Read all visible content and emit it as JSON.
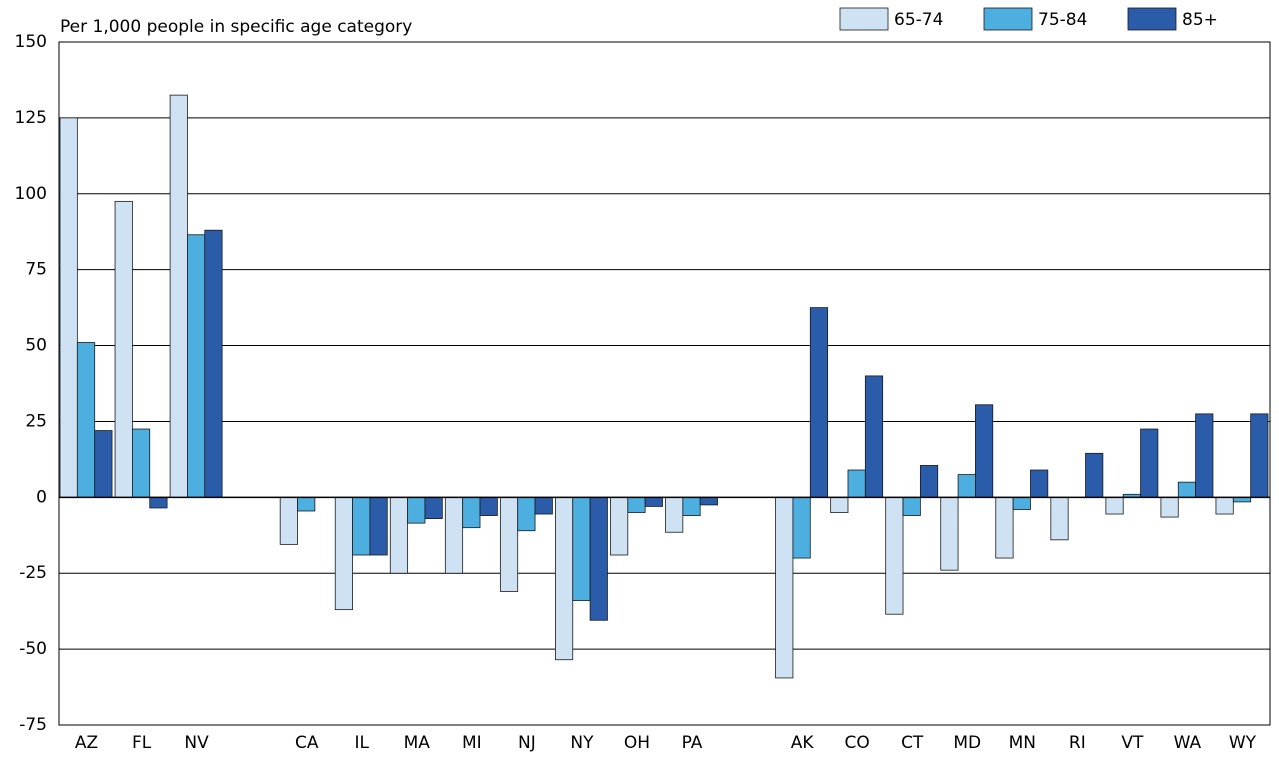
{
  "chart_data": {
    "type": "bar",
    "subtitle": "Per 1,000 people in specific age category",
    "categories": [
      "AZ",
      "FL",
      "NV",
      null,
      "CA",
      "IL",
      "MA",
      "MI",
      "NJ",
      "NY",
      "OH",
      "PA",
      null,
      "AK",
      "CO",
      "CT",
      "MD",
      "MN",
      "RI",
      "VT",
      "WA",
      "WY"
    ],
    "series": [
      {
        "name": "65-74",
        "color": "#cfe2f3",
        "values": [
          125,
          97.5,
          132.5,
          null,
          -15.5,
          -37,
          -25,
          -25,
          -31,
          -53.5,
          -19,
          -11.5,
          null,
          -59.5,
          -5,
          -38.5,
          -24,
          -20,
          -14,
          -5.5,
          -6.5,
          -5.5
        ]
      },
      {
        "name": "75-84",
        "color": "#4daee0",
        "values": [
          51,
          22.5,
          86.5,
          null,
          -4.5,
          -19,
          -8.5,
          -10,
          -11,
          -34,
          -5,
          -6,
          null,
          -20,
          9,
          -6,
          7.5,
          -4,
          0,
          1,
          5,
          -1.5
        ]
      },
      {
        "name": "85+",
        "color": "#2a5caa",
        "values": [
          22,
          -3.5,
          88,
          null,
          0,
          -19,
          -7,
          -6,
          -5.5,
          -40.5,
          -3,
          -2.5,
          null,
          62.5,
          40,
          10.5,
          30.5,
          9,
          14.5,
          22.5,
          27.5,
          27.5
        ]
      }
    ],
    "ylim": [
      -75,
      150
    ],
    "yticks": [
      -75,
      -50,
      -25,
      0,
      25,
      50,
      75,
      100,
      125,
      150
    ],
    "grid": true,
    "legend": "top-right"
  }
}
